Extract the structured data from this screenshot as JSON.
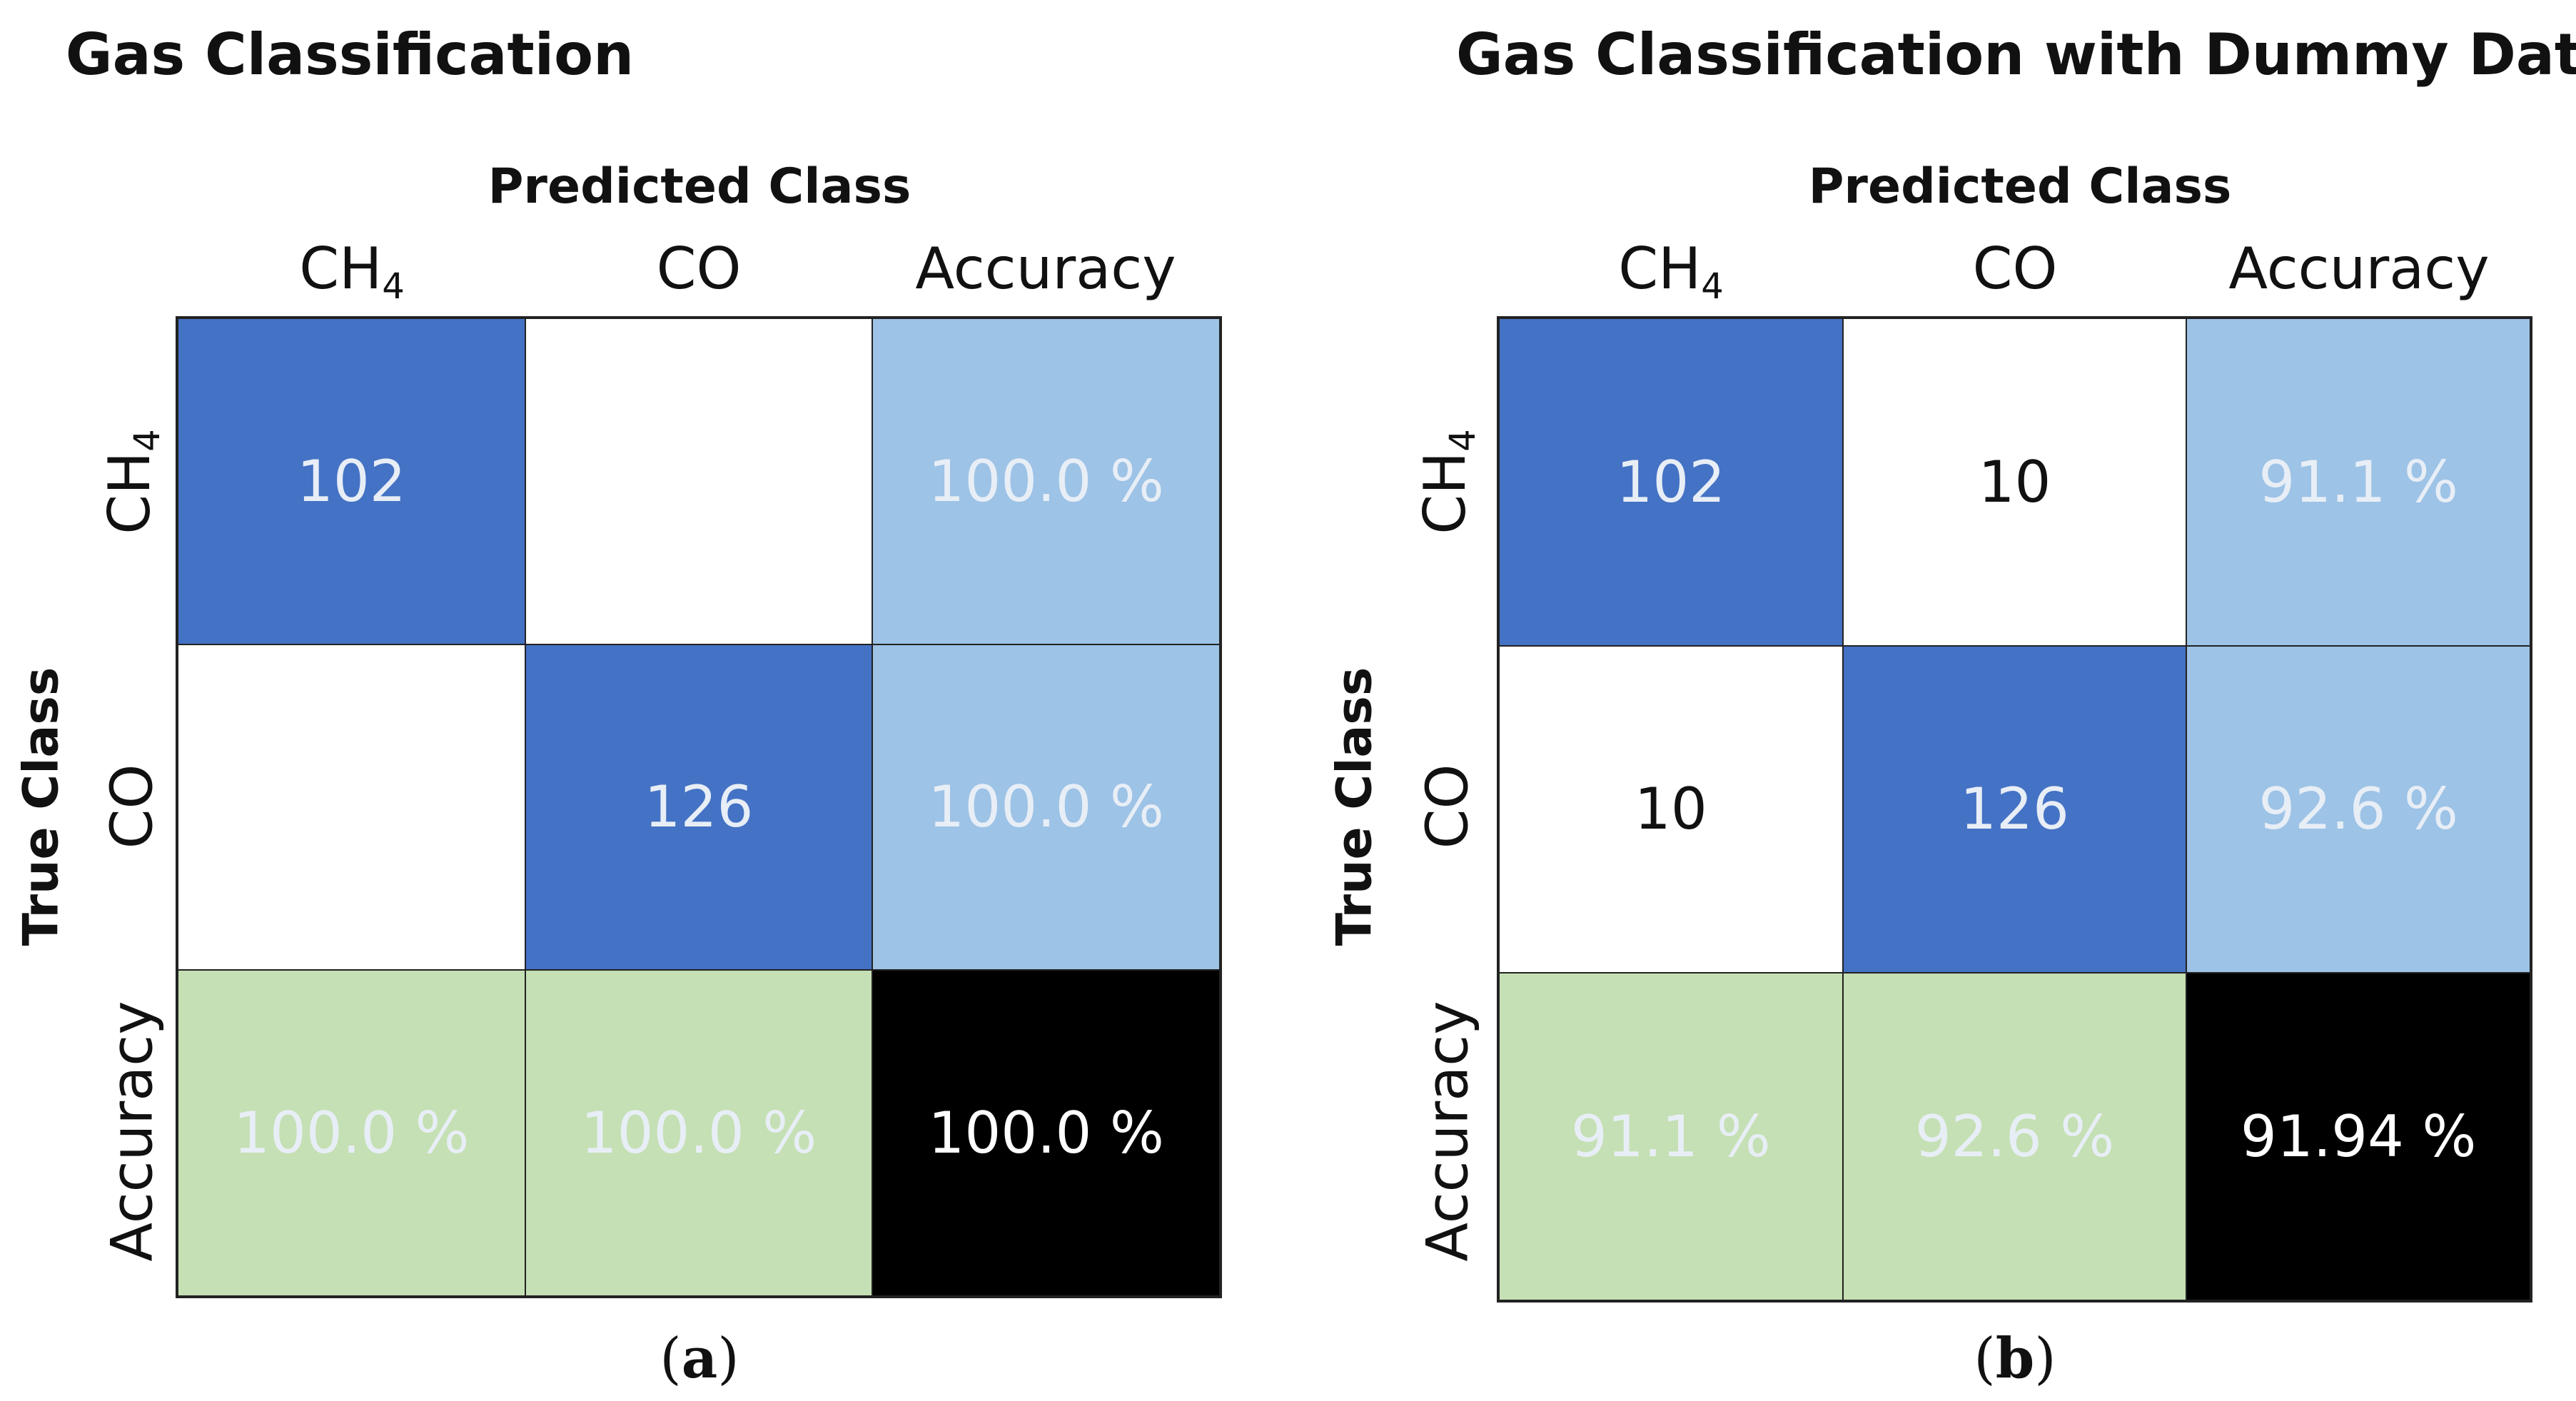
{
  "colors": {
    "dark_blue": "#4472c4",
    "light_blue": "#9dc3e6",
    "light_green": "#c5e0b4",
    "black": "#000000",
    "white": "#ffffff",
    "text_light": "#e8eef6",
    "text_dark": "#111111"
  },
  "chart_data": [
    {
      "type": "heatmap",
      "title": "Gas Classification",
      "xlabel": "Predicted Class",
      "ylabel": "True Class",
      "columns": [
        "CH4",
        "CO",
        "Accuracy"
      ],
      "rows": [
        "CH4",
        "CO",
        "Accuracy"
      ],
      "cells": [
        [
          "102",
          "",
          "100.0 %"
        ],
        [
          "",
          "126",
          "100.0 %"
        ],
        [
          "100.0 %",
          "100.0 %",
          "100.0 %"
        ]
      ],
      "matrix": [
        [
          102,
          0
        ],
        [
          0,
          126
        ]
      ],
      "row_accuracy": [
        100.0,
        100.0
      ],
      "col_accuracy": [
        100.0,
        100.0
      ],
      "overall_accuracy": 100.0,
      "caption": "a"
    },
    {
      "type": "heatmap",
      "title": "Gas Classification with Dummy Data",
      "xlabel": "Predicted Class",
      "ylabel": "True Class",
      "columns": [
        "CH4",
        "CO",
        "Accuracy"
      ],
      "rows": [
        "CH4",
        "CO",
        "Accuracy"
      ],
      "cells": [
        [
          "102",
          "10",
          "91.1 %"
        ],
        [
          "10",
          "126",
          "92.6 %"
        ],
        [
          "91.1 %",
          "92.6 %",
          "91.94 %"
        ]
      ],
      "matrix": [
        [
          102,
          10
        ],
        [
          10,
          126
        ]
      ],
      "row_accuracy": [
        91.1,
        92.6
      ],
      "col_accuracy": [
        91.1,
        92.6
      ],
      "overall_accuracy": 91.94,
      "caption": "b"
    }
  ]
}
